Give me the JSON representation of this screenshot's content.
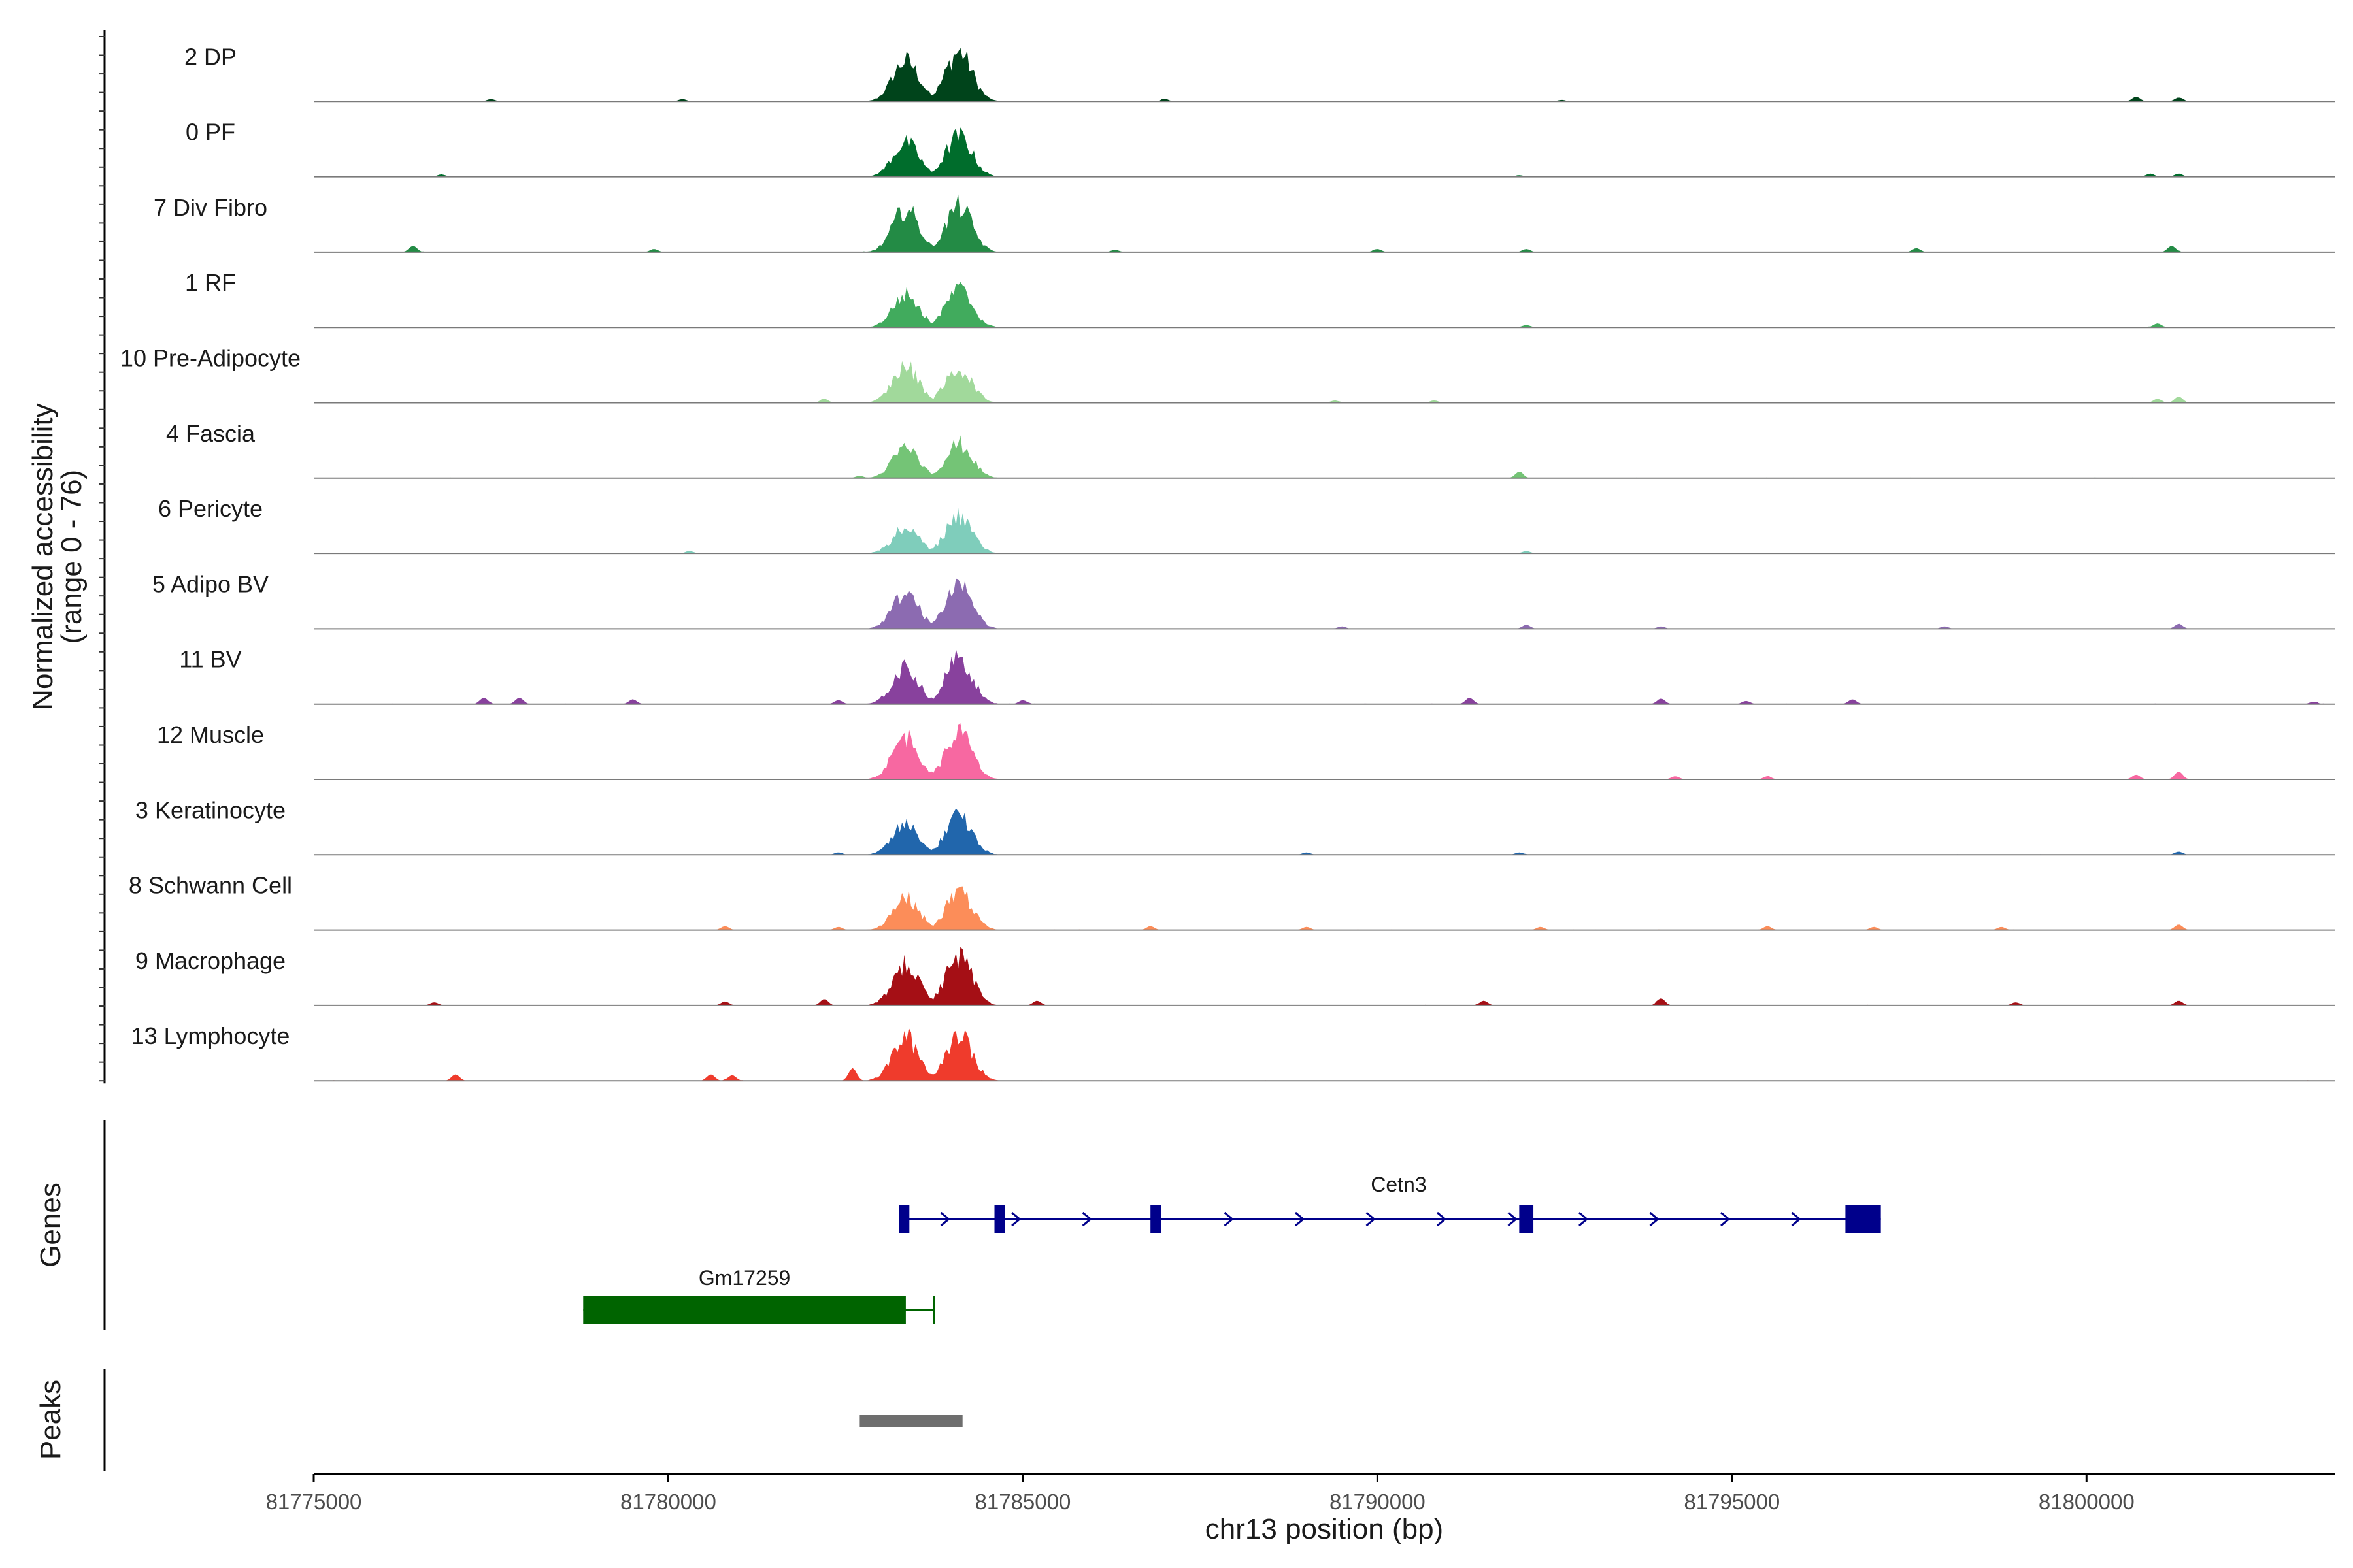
{
  "chart_data": {
    "type": "area",
    "title": "",
    "ylabel": "Normalized accessibility",
    "ylabel_range": "(range 0 - 76)",
    "ylim": [
      0,
      76
    ],
    "xlabel": "chr13 position (bp)",
    "xlim": [
      81775000,
      81803500
    ],
    "x_ticks": [
      81775000,
      81780000,
      81785000,
      81790000,
      81795000,
      81800000
    ],
    "x_tick_labels": [
      "81775000",
      "81780000",
      "81785000",
      "81790000",
      "81795000",
      "81800000"
    ],
    "tracks": [
      {
        "name": "2 DP",
        "color": "#00441b",
        "peaks": [
          [
            81783350,
            62
          ],
          [
            81784100,
            76
          ],
          [
            81800700,
            6
          ],
          [
            81801300,
            5
          ],
          [
            81777500,
            3
          ],
          [
            81780200,
            3
          ],
          [
            81787000,
            3
          ],
          [
            81792600,
            2
          ]
        ]
      },
      {
        "name": "0 PF",
        "color": "#006d2c",
        "peaks": [
          [
            81783350,
            52
          ],
          [
            81784100,
            62
          ],
          [
            81800900,
            4
          ],
          [
            81801300,
            4
          ],
          [
            81776800,
            3
          ],
          [
            81792000,
            2
          ]
        ]
      },
      {
        "name": "7 Div Fibro",
        "color": "#238b45",
        "peaks": [
          [
            81783350,
            66
          ],
          [
            81784100,
            70
          ],
          [
            81776400,
            8
          ],
          [
            81801200,
            8
          ],
          [
            81797600,
            5
          ],
          [
            81792100,
            4
          ],
          [
            81779800,
            4
          ],
          [
            81790000,
            4
          ],
          [
            81786300,
            3
          ]
        ]
      },
      {
        "name": "1 RF",
        "color": "#41ab5d",
        "peaks": [
          [
            81783350,
            50
          ],
          [
            81784100,
            58
          ],
          [
            81801000,
            5
          ],
          [
            81792100,
            3
          ]
        ]
      },
      {
        "name": "10 Pre-Adipocyte",
        "color": "#a1d99b",
        "peaks": [
          [
            81783350,
            55
          ],
          [
            81784100,
            52
          ],
          [
            81782200,
            5
          ],
          [
            81801300,
            8
          ],
          [
            81801000,
            5
          ],
          [
            81789400,
            3
          ],
          [
            81790800,
            3
          ]
        ]
      },
      {
        "name": "4 Fascia",
        "color": "#74c476",
        "peaks": [
          [
            81783350,
            46
          ],
          [
            81784100,
            52
          ],
          [
            81792000,
            8
          ],
          [
            81782700,
            3
          ]
        ]
      },
      {
        "name": "6 Pericyte",
        "color": "#7fcdbb",
        "peaks": [
          [
            81783350,
            40
          ],
          [
            81784100,
            58
          ],
          [
            81780300,
            3
          ],
          [
            81792100,
            3
          ]
        ]
      },
      {
        "name": "5 Adipo BV",
        "color": "#8c6bb1",
        "peaks": [
          [
            81783350,
            55
          ],
          [
            81784100,
            70
          ],
          [
            81792100,
            5
          ],
          [
            81794000,
            3
          ],
          [
            81801300,
            6
          ],
          [
            81798000,
            3
          ],
          [
            81789500,
            3
          ]
        ]
      },
      {
        "name": "11 BV",
        "color": "#88419d",
        "peaks": [
          [
            81783350,
            55
          ],
          [
            81784100,
            70
          ],
          [
            81777400,
            8
          ],
          [
            81777900,
            8
          ],
          [
            81779500,
            6
          ],
          [
            81782400,
            5
          ],
          [
            81785000,
            5
          ],
          [
            81791300,
            8
          ],
          [
            81794000,
            7
          ],
          [
            81796700,
            6
          ],
          [
            81795200,
            4
          ],
          [
            81803200,
            3
          ]
        ]
      },
      {
        "name": "12 Muscle",
        "color": "#f768a1",
        "peaks": [
          [
            81783350,
            66
          ],
          [
            81784100,
            72
          ],
          [
            81801300,
            10
          ],
          [
            81800700,
            6
          ],
          [
            81794200,
            4
          ],
          [
            81795500,
            4
          ]
        ]
      },
      {
        "name": "3 Keratinocyte",
        "color": "#2166ac",
        "peaks": [
          [
            81783350,
            46
          ],
          [
            81784100,
            58
          ],
          [
            81801300,
            4
          ],
          [
            81792000,
            3
          ],
          [
            81789000,
            3
          ],
          [
            81782400,
            3
          ]
        ]
      },
      {
        "name": "8 Schwann Cell",
        "color": "#fc8d59",
        "peaks": [
          [
            81783350,
            50
          ],
          [
            81784100,
            58
          ],
          [
            81780800,
            5
          ],
          [
            81782400,
            4
          ],
          [
            81786800,
            5
          ],
          [
            81795500,
            5
          ],
          [
            81801300,
            7
          ],
          [
            81789000,
            4
          ],
          [
            81792300,
            4
          ],
          [
            81797000,
            4
          ],
          [
            81798800,
            4
          ]
        ]
      },
      {
        "name": "9 Macrophage",
        "color": "#a50f15",
        "peaks": [
          [
            81783350,
            62
          ],
          [
            81784100,
            76
          ],
          [
            81782200,
            8
          ],
          [
            81785200,
            6
          ],
          [
            81776700,
            4
          ],
          [
            81780800,
            5
          ],
          [
            81791500,
            6
          ],
          [
            81794000,
            9
          ],
          [
            81801300,
            6
          ],
          [
            81799000,
            4
          ]
        ]
      },
      {
        "name": "13 Lymphocyte",
        "color": "#ef3b2c",
        "peaks": [
          [
            81783350,
            66
          ],
          [
            81784100,
            72
          ],
          [
            81782600,
            16
          ],
          [
            81777000,
            8
          ],
          [
            81780600,
            8
          ],
          [
            81780900,
            7
          ]
        ]
      }
    ],
    "genes": {
      "title": "Genes",
      "items": [
        {
          "name": "Cetn3",
          "color": "#00008b",
          "strand": "+",
          "start": 81783300,
          "end": 81797100,
          "exons": [
            [
              81783250,
              81783400
            ],
            [
              81784600,
              81784750
            ],
            [
              81786800,
              81786950
            ],
            [
              81792000,
              81792200
            ],
            [
              81796600,
              81797100
            ]
          ]
        },
        {
          "name": "Gm17259",
          "color": "#006400",
          "strand": "-",
          "start": 81778800,
          "end": 81783750,
          "exons": [
            [
              81778800,
              81783350
            ]
          ]
        }
      ]
    },
    "peaks_track": {
      "title": "Peaks",
      "color": "#6e6e6e",
      "regions": [
        [
          81782700,
          81784150
        ]
      ]
    }
  }
}
